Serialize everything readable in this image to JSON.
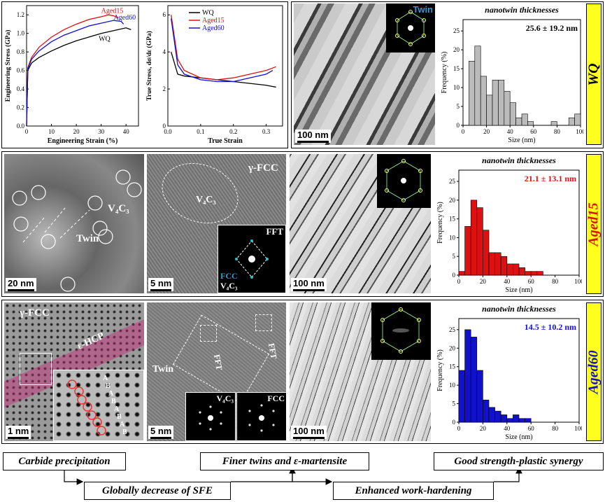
{
  "colors": {
    "wq": "#000000",
    "aged15": "#e01010",
    "aged60": "#1010d0",
    "hist_wq": "#bbbbbb",
    "hist_aged15": "#dd1111",
    "hist_aged60": "#1111cc",
    "label_bg": "#ffff1e"
  },
  "row1": {
    "stress_strain": {
      "ylabel": "Engineering Stress (GPa)",
      "xlabel": "Engineering Strain (%)",
      "yticks": [
        "0.0",
        "0.2",
        "0.4",
        "0.6",
        "0.8",
        "1.0",
        "1.2"
      ],
      "xticks": [
        "0",
        "10",
        "20",
        "30",
        "40"
      ],
      "legend": {
        "wq": "WQ",
        "aged15": "Aged15",
        "aged60": "Aged60"
      }
    },
    "hardening": {
      "ylabel": "True Stress, dσ/dε (GPa)",
      "xlabel": "True Strain",
      "yticks": [
        "0",
        "2",
        "4",
        "6"
      ],
      "xticks": [
        "0.0",
        "0.1",
        "0.2",
        "0.3"
      ],
      "legend": [
        "WQ",
        "Aged15",
        "Aged60"
      ]
    },
    "tem": {
      "scale": "100 nm",
      "inset_label": "Twin"
    },
    "hist": {
      "title": "nanotwin thicknesses",
      "value": "25.6 ± 19.2 nm",
      "ylabel": "Frequency (%)",
      "xlabel": "Size (nm)",
      "yticks": [
        "0",
        "5",
        "10",
        "15",
        "20",
        "25"
      ],
      "xticks": [
        "0",
        "20",
        "40",
        "60",
        "80",
        "100"
      ]
    },
    "sample": "WQ"
  },
  "row2": {
    "tem1": {
      "scale": "20 nm",
      "carbide": "V₄C₃",
      "twin": "Twin"
    },
    "tem2": {
      "scale": "5 nm",
      "phase": "γ-FCC",
      "carbide": "V₄C₃",
      "fft": "FFT",
      "fft_fcc": "FCC",
      "fft_carbide": "V₄C₃"
    },
    "tem3": {
      "scale": "100 nm"
    },
    "hist": {
      "title": "nanotwin thicknesses",
      "value": "21.1 ± 13.1 nm",
      "ylabel": "Frequency (%)",
      "xlabel": "Size (nm)",
      "yticks": [
        "0",
        "5",
        "10",
        "15",
        "20",
        "25"
      ],
      "xticks": [
        "0",
        "20",
        "40",
        "60",
        "80",
        "100"
      ]
    },
    "sample": "Aged15"
  },
  "row3": {
    "tem1": {
      "scale": "1 nm",
      "phase": "γ-FCC",
      "hcp": "ε-HCP",
      "stack": [
        "A",
        "B",
        "A",
        "B",
        "A",
        "B",
        "A",
        "B"
      ]
    },
    "tem2": {
      "scale": "5 nm",
      "twin": "Twin",
      "fft_left": "FFT",
      "fft_right": "FFT",
      "inset_left": "V₄C₃",
      "inset_right": "FCC"
    },
    "tem3": {
      "scale": "100 nm"
    },
    "hist": {
      "title": "nanotwin thicknesses",
      "value": "14.5 ± 10.2 nm",
      "ylabel": "Frequency (%)",
      "xlabel": "Size (nm)",
      "yticks": [
        "0",
        "5",
        "10",
        "15",
        "20",
        "25"
      ],
      "xticks": [
        "0",
        "20",
        "40",
        "60",
        "80",
        "100"
      ]
    },
    "sample": "Aged60"
  },
  "summary": {
    "carbide": "Carbide precipitation",
    "sfe": "Globally decrease of SFE",
    "twins": "Finer twins and ε-martensite",
    "hardening": "Enhanced work-hardening",
    "synergy": "Good strength-plastic synergy"
  },
  "chart_data": [
    {
      "type": "line",
      "title": "",
      "xlabel": "Engineering Strain (%)",
      "ylabel": "Engineering Stress (GPa)",
      "xlim": [
        0,
        45
      ],
      "ylim": [
        0,
        1.3
      ],
      "series": [
        {
          "name": "WQ",
          "x": [
            0,
            0.5,
            2,
            5,
            10,
            15,
            20,
            25,
            30,
            35,
            40,
            42
          ],
          "y": [
            0,
            0.6,
            0.68,
            0.74,
            0.81,
            0.87,
            0.92,
            0.96,
            1.0,
            1.03,
            1.06,
            1.04
          ]
        },
        {
          "name": "Aged15",
          "x": [
            0,
            0.5,
            2,
            5,
            10,
            15,
            20,
            25,
            30,
            33,
            35,
            37
          ],
          "y": [
            0,
            0.63,
            0.74,
            0.85,
            0.96,
            1.04,
            1.1,
            1.15,
            1.18,
            1.2,
            1.19,
            1.17
          ]
        },
        {
          "name": "Aged60",
          "x": [
            0,
            0.5,
            2,
            5,
            10,
            15,
            20,
            25,
            30,
            35,
            38,
            39
          ],
          "y": [
            0,
            0.62,
            0.72,
            0.81,
            0.91,
            0.98,
            1.03,
            1.08,
            1.11,
            1.14,
            1.13,
            1.1
          ]
        }
      ]
    },
    {
      "type": "line",
      "title": "",
      "xlabel": "True Strain",
      "ylabel": "True Stress, dσ/dε (GPa)",
      "xlim": [
        0,
        0.35
      ],
      "ylim": [
        0,
        6.5
      ],
      "series": [
        {
          "name": "WQ",
          "x": [
            0.01,
            0.03,
            0.05,
            0.1,
            0.15,
            0.2,
            0.25,
            0.3,
            0.33
          ],
          "y": [
            4.0,
            2.8,
            2.7,
            2.6,
            2.5,
            2.4,
            2.3,
            2.2,
            2.1
          ]
        },
        {
          "name": "Aged15",
          "x": [
            0.01,
            0.03,
            0.05,
            0.1,
            0.15,
            0.2,
            0.25,
            0.3,
            0.33
          ],
          "y": [
            6.0,
            3.6,
            3.0,
            2.6,
            2.5,
            2.6,
            2.8,
            3.0,
            3.2
          ]
        },
        {
          "name": "Aged60",
          "x": [
            0.01,
            0.03,
            0.05,
            0.1,
            0.15,
            0.2,
            0.25,
            0.3,
            0.32
          ],
          "y": [
            5.8,
            3.3,
            2.8,
            2.5,
            2.4,
            2.4,
            2.6,
            2.8,
            3.0
          ]
        }
      ]
    },
    {
      "type": "bar",
      "title": "nanotwin thicknesses",
      "xlabel": "Size (nm)",
      "ylabel": "Frequency (%)",
      "xlim": [
        0,
        100
      ],
      "ylim": [
        0,
        28
      ],
      "series": [
        {
          "name": "WQ",
          "x": [
            7.5,
            12.5,
            17.5,
            22.5,
            27.5,
            32.5,
            37.5,
            42.5,
            47.5,
            52.5,
            57.5,
            77.5,
            92.5,
            97.5
          ],
          "values": [
            17,
            21,
            13,
            8,
            12,
            12,
            9,
            6,
            2,
            3,
            1,
            1,
            2,
            3
          ]
        }
      ]
    },
    {
      "type": "bar",
      "title": "nanotwin thicknesses",
      "xlabel": "Size (nm)",
      "ylabel": "Frequency (%)",
      "xlim": [
        0,
        100
      ],
      "ylim": [
        0,
        28
      ],
      "series": [
        {
          "name": "Aged15",
          "x": [
            2.5,
            7.5,
            12.5,
            17.5,
            22.5,
            27.5,
            32.5,
            37.5,
            42.5,
            47.5,
            52.5,
            57.5,
            62.5,
            67.5
          ],
          "values": [
            1,
            13,
            20,
            18,
            12,
            6,
            6,
            5,
            3,
            3,
            2,
            1,
            1,
            1
          ]
        }
      ]
    },
    {
      "type": "bar",
      "title": "nanotwin thicknesses",
      "xlabel": "Size (nm)",
      "ylabel": "Frequency (%)",
      "xlim": [
        0,
        100
      ],
      "ylim": [
        0,
        28
      ],
      "series": [
        {
          "name": "Aged60",
          "x": [
            2.5,
            7.5,
            12.5,
            17.5,
            22.5,
            27.5,
            32.5,
            37.5,
            42.5,
            47.5,
            52.5,
            57.5
          ],
          "values": [
            14,
            25,
            23,
            14,
            6,
            4,
            3,
            2,
            1,
            2,
            1,
            1
          ]
        }
      ]
    }
  ]
}
